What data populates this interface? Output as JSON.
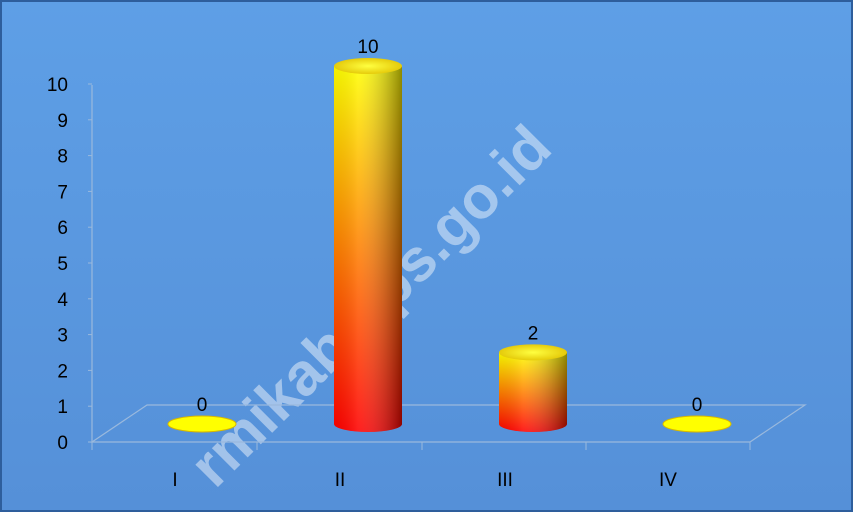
{
  "watermark": "rmikab.bps.go.id",
  "colors": {
    "background": "#5b9be0",
    "border": "#2e5e9c",
    "top": "#ffff00",
    "mid": "#ff8c00",
    "bottom": "#ff0000",
    "dark": "#7a0000"
  },
  "chart_data": {
    "type": "bar",
    "style": "3d-cylinder",
    "categories": [
      "I",
      "II",
      "III",
      "IV"
    ],
    "values": [
      0,
      10,
      2,
      0
    ],
    "data_labels": [
      "0",
      "10",
      "2",
      "0"
    ],
    "title": "",
    "xlabel": "",
    "ylabel": "",
    "ylim": [
      0,
      10
    ],
    "yticks": [
      "0",
      "1",
      "2",
      "3",
      "4",
      "5",
      "6",
      "7",
      "8",
      "9",
      "10"
    ],
    "grid": false,
    "legend": "none"
  }
}
